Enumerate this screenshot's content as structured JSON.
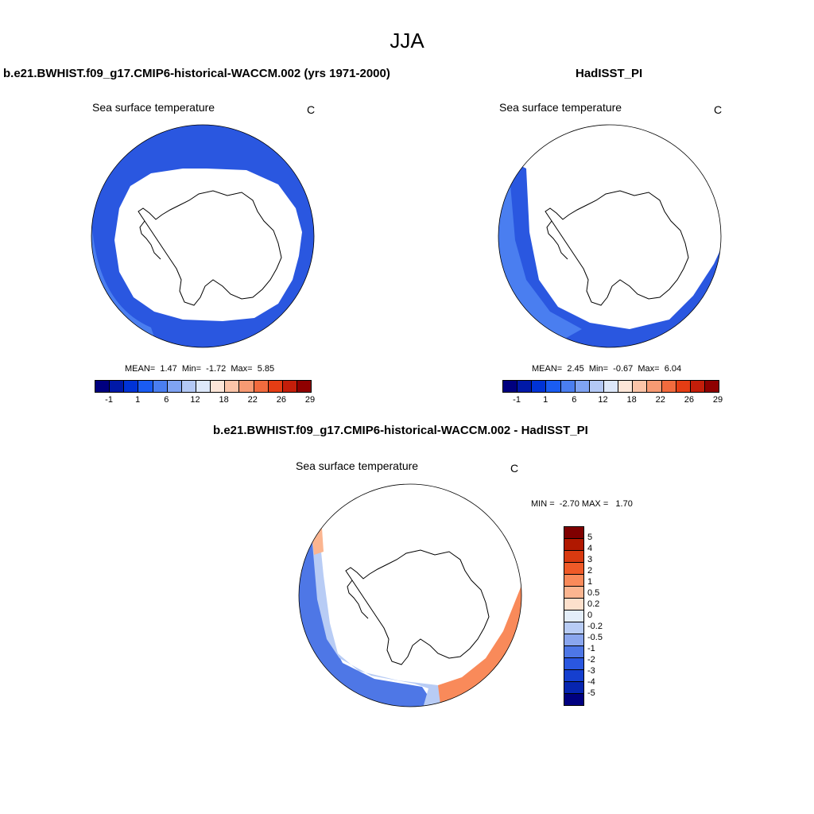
{
  "figure": {
    "title": "JJA",
    "units_label": "C",
    "variable_label": "Sea surface temperature"
  },
  "panel_model": {
    "title": "b.e21.BWHIST.f09_g17.CMIP6-historical-WACCM.002 (yrs 1971-2000)",
    "subtitle": "Sea surface temperature",
    "units": "C",
    "mean_label": "MEAN=",
    "mean": "1.47",
    "min_label": "Min=",
    "min": "-1.72",
    "max_label": "Max=",
    "max": "5.85"
  },
  "panel_obs": {
    "title": "HadISST_PI",
    "subtitle": "Sea surface temperature",
    "units": "C",
    "mean_label": "MEAN=",
    "mean": "2.45",
    "min_label": "Min=",
    "min": "-0.67",
    "max_label": "Max=",
    "max": "6.04"
  },
  "panel_diff": {
    "title": "b.e21.BWHIST.f09_g17.CMIP6-historical-WACCM.002 - HadISST_PI",
    "subtitle": "Sea surface temperature",
    "units": "C",
    "min_label": "MIN =",
    "min": "-2.70",
    "max_label": "MAX =",
    "max": "1.70"
  },
  "colorbar_abs": {
    "tick_labels": [
      "-1",
      "1",
      "6",
      "12",
      "18",
      "22",
      "26",
      "29"
    ],
    "colors": [
      "#00007f",
      "#0019a8",
      "#0033d6",
      "#1a5cf2",
      "#4a7ef0",
      "#7fa3f2",
      "#b3c8f5",
      "#dde8fa",
      "#fde6d8",
      "#fbc4a8",
      "#f79a73",
      "#f26b3e",
      "#e53d14",
      "#c41e0a",
      "#8f0000"
    ]
  },
  "colorbar_diff": {
    "tick_labels": [
      "5",
      "4",
      "3",
      "2",
      "1",
      "0.5",
      "0.2",
      "0",
      "-0.2",
      "-0.5",
      "-1",
      "-2",
      "-3",
      "-4",
      "-5"
    ],
    "colors": [
      "#7f0000",
      "#b01800",
      "#d83a10",
      "#ef5a28",
      "#f98a5a",
      "#fbb590",
      "#fde0cc",
      "#e4eefa",
      "#b8ccf5",
      "#8aa6ee",
      "#4e77e6",
      "#2a57e0",
      "#153fcf",
      "#0625b0",
      "#000080"
    ]
  },
  "map_colors": {
    "ocean_cold": "#2a57e0",
    "ocean_mid": "#4a7ef0",
    "ocean_warm": "#6d96ee",
    "diff_blue": "#4e77e6",
    "diff_lightblue": "#b8ccf5",
    "diff_orange": "#f98a5a",
    "diff_peach": "#fbb590"
  }
}
